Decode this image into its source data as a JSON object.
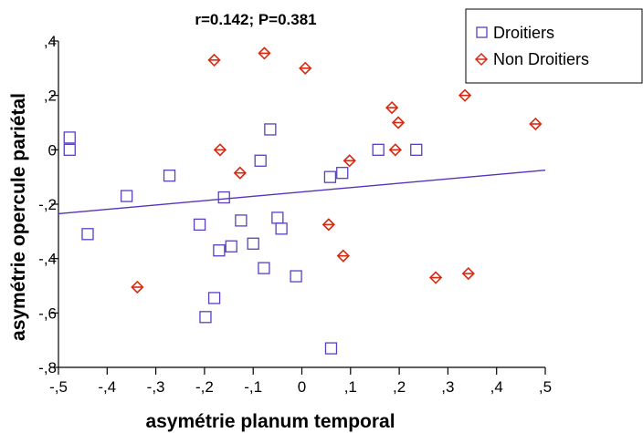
{
  "chart_data": {
    "type": "scatter",
    "title": "r=0.142; P=0.381",
    "xlabel": "asymétrie planum temporal",
    "ylabel": "asymétrie opercule pariétal",
    "xlim": [
      -0.5,
      0.5
    ],
    "ylim": [
      -0.8,
      0.4
    ],
    "x_ticks": [
      -0.5,
      -0.4,
      -0.3,
      -0.2,
      -0.1,
      0,
      0.1,
      0.2,
      0.3,
      0.4,
      0.5
    ],
    "x_tick_labels": [
      "-,5",
      "-,4",
      "-,3",
      "-,2",
      "-,1",
      "0",
      ",1",
      ",2",
      ",3",
      ",4",
      ",5"
    ],
    "y_ticks": [
      0.4,
      0.2,
      0,
      -0.2,
      -0.4,
      -0.6,
      -0.8
    ],
    "y_tick_labels": [
      ",4",
      ",2",
      "0",
      "-,2",
      "-,4",
      "-,6",
      "-,8"
    ],
    "grid": false,
    "legend_position": "top-right outside",
    "regression_line": {
      "x": [
        -0.5,
        0.5
      ],
      "y": [
        -0.235,
        -0.075
      ],
      "color": "#5533bb"
    },
    "series": [
      {
        "name": "Droitiers",
        "marker": "square",
        "color": "#5a3fc0",
        "points": [
          [
            -0.477,
            0.045
          ],
          [
            -0.477,
            0.0
          ],
          [
            -0.44,
            -0.31
          ],
          [
            -0.36,
            -0.17
          ],
          [
            -0.272,
            -0.095
          ],
          [
            -0.21,
            -0.275
          ],
          [
            -0.198,
            -0.615
          ],
          [
            -0.18,
            -0.545
          ],
          [
            -0.17,
            -0.37
          ],
          [
            -0.16,
            -0.175
          ],
          [
            -0.145,
            -0.355
          ],
          [
            -0.125,
            -0.26
          ],
          [
            -0.1,
            -0.345
          ],
          [
            -0.085,
            -0.04
          ],
          [
            -0.078,
            -0.435
          ],
          [
            -0.065,
            0.075
          ],
          [
            -0.05,
            -0.25
          ],
          [
            -0.042,
            -0.29
          ],
          [
            -0.012,
            -0.465
          ],
          [
            0.058,
            -0.1
          ],
          [
            0.083,
            -0.085
          ],
          [
            0.06,
            -0.73
          ],
          [
            0.157,
            0.0
          ],
          [
            0.235,
            0.0
          ]
        ]
      },
      {
        "name": "Non Droitiers",
        "marker": "diamond",
        "color": "#d62a12",
        "points": [
          [
            -0.338,
            -0.505
          ],
          [
            -0.18,
            0.33
          ],
          [
            -0.168,
            0.0
          ],
          [
            -0.127,
            -0.085
          ],
          [
            -0.077,
            0.355
          ],
          [
            0.007,
            0.3
          ],
          [
            0.055,
            -0.275
          ],
          [
            0.085,
            -0.39
          ],
          [
            0.098,
            -0.04
          ],
          [
            0.185,
            0.155
          ],
          [
            0.192,
            0.0
          ],
          [
            0.198,
            0.1
          ],
          [
            0.275,
            -0.47
          ],
          [
            0.335,
            0.2
          ],
          [
            0.342,
            -0.455
          ],
          [
            0.48,
            0.095
          ]
        ]
      }
    ]
  }
}
